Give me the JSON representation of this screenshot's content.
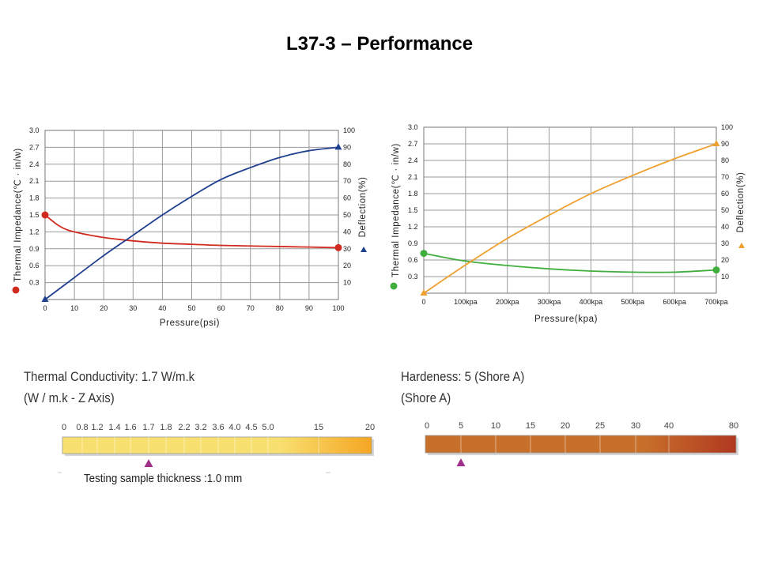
{
  "page": {
    "title": "L37-3 – Performance"
  },
  "chart_data": [
    {
      "type": "line",
      "xlabel": "Pressure(psi)",
      "ylabel_left": "Thermal Impedance(℃ · in/w)",
      "ylabel_right": "Deflection(%)",
      "x_ticks": [
        "0",
        "10",
        "20",
        "30",
        "40",
        "50",
        "60",
        "70",
        "80",
        "90",
        "100"
      ],
      "y_left_ticks": [
        "0.3",
        "0.6",
        "0.9",
        "1.2",
        "1.5",
        "1.8",
        "2.1",
        "2.4",
        "2.7",
        "3.0"
      ],
      "y_right_ticks": [
        "10",
        "20",
        "30",
        "40",
        "50",
        "60",
        "70",
        "80",
        "90",
        "100"
      ],
      "xlim": [
        0,
        100
      ],
      "ylim_left": [
        0,
        3.0
      ],
      "ylim_right": [
        0,
        100
      ],
      "grid": true,
      "series": [
        {
          "axis": "left",
          "color": "#d12b1f",
          "marker": "circle",
          "x": [
            0,
            5,
            10,
            20,
            30,
            40,
            50,
            60,
            70,
            80,
            90,
            100
          ],
          "y": [
            1.5,
            1.3,
            1.2,
            1.1,
            1.04,
            1.0,
            0.98,
            0.96,
            0.95,
            0.94,
            0.93,
            0.92
          ]
        },
        {
          "axis": "right",
          "color": "#1f3f8f",
          "marker": "triangle",
          "x": [
            0,
            10,
            20,
            30,
            40,
            50,
            60,
            70,
            80,
            90,
            100
          ],
          "y": [
            0,
            13,
            26,
            38,
            50,
            61,
            71,
            78,
            84,
            88,
            90
          ]
        }
      ]
    },
    {
      "type": "line",
      "xlabel": "Pressure(kpa)",
      "ylabel_left": "Thermal Impedance(℃ · in/w)",
      "ylabel_right": "Deflection(%)",
      "x_ticks": [
        "0",
        "100kpa",
        "200kpa",
        "300kpa",
        "400kpa",
        "500kpa",
        "600kpa",
        "700kpa"
      ],
      "y_left_ticks": [
        "0.3",
        "0.6",
        "0.9",
        "1.2",
        "1.5",
        "1.8",
        "2.1",
        "2.4",
        "2.7",
        "3.0"
      ],
      "y_right_ticks": [
        "10",
        "20",
        "30",
        "40",
        "50",
        "60",
        "70",
        "80",
        "90",
        "100"
      ],
      "xlim": [
        0,
        700
      ],
      "ylim_left": [
        0,
        3.0
      ],
      "ylim_right": [
        0,
        100
      ],
      "grid": true,
      "series": [
        {
          "axis": "left",
          "color": "#3fae3c",
          "marker": "circle",
          "x": [
            0,
            100,
            200,
            300,
            400,
            500,
            600,
            700
          ],
          "y": [
            0.72,
            0.58,
            0.5,
            0.44,
            0.4,
            0.38,
            0.38,
            0.42
          ]
        },
        {
          "axis": "right",
          "color": "#f0a030",
          "marker": "triangle",
          "x": [
            0,
            100,
            200,
            300,
            400,
            500,
            600,
            700
          ],
          "y": [
            0,
            17,
            33,
            47,
            60,
            71,
            81,
            90
          ]
        }
      ]
    }
  ],
  "conductivity": {
    "title": "Thermal Conductivity: 1.7 W/m.k",
    "subtitle": "(W / m.k - Z Axis)",
    "scale_labels": [
      "0",
      "0.8",
      "1.2",
      "1.4",
      "1.6",
      "1.7",
      "1.8",
      "2.2",
      "3.2",
      "3.6",
      "4.0",
      "4.5",
      "5.0",
      "15",
      "20"
    ],
    "marker_label": "1.7",
    "note": "Testing sample thickness :1.0 mm",
    "colors": [
      "#f8e070",
      "#f5a623"
    ],
    "marker_color": "#a0308a"
  },
  "hardness": {
    "title": "Hardeness: 5 (Shore A)",
    "subtitle": "(Shore A)",
    "scale_labels": [
      "0",
      "5",
      "10",
      "15",
      "20",
      "25",
      "30",
      "40",
      "80"
    ],
    "marker_label": "5",
    "colors": [
      "#c8702a",
      "#b03820"
    ],
    "marker_color": "#a0308a"
  }
}
